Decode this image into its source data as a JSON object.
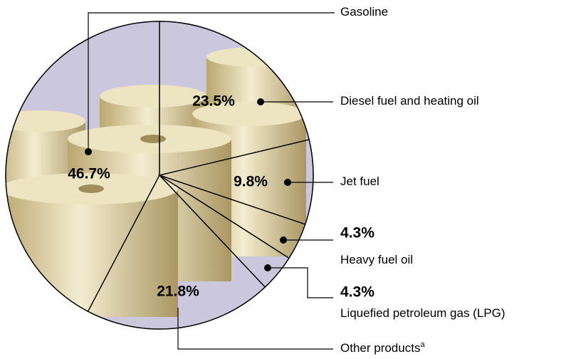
{
  "chart_data": {
    "type": "pie",
    "categories": [
      "Gasoline",
      "Diesel fuel and heating oil",
      "Jet fuel",
      "Heavy fuel oil",
      "Liquefied petroleum gas (LPG)",
      "Other products"
    ],
    "values": [
      46.7,
      23.5,
      9.8,
      4.3,
      4.3,
      21.8
    ],
    "value_labels": [
      "46.7%",
      "23.5%",
      "9.8%",
      "4.3%",
      "4.3%",
      "21.8%"
    ],
    "footnote_marker": "a",
    "background_color": "#cbc8de"
  }
}
